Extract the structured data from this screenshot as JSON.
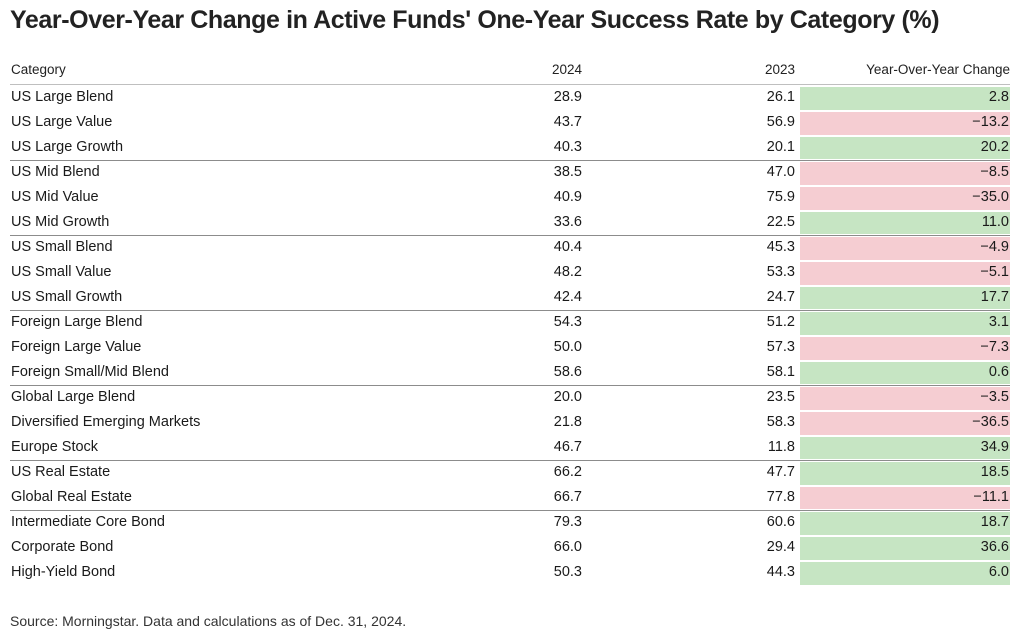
{
  "chart_data": {
    "type": "table",
    "title": "Year-Over-Year Change in Active Funds' One-Year Success Rate by Category (%)",
    "columns": [
      "Category",
      "2024",
      "2023",
      "Year-Over-Year Change"
    ],
    "colors": {
      "positive_fill": "#c6e5c3",
      "negative_fill": "#f5cdd2"
    },
    "rows": [
      {
        "category": "US Large Blend",
        "y2024": "28.9",
        "y2023": "26.1",
        "yoy": "2.8",
        "sign": "positive",
        "group_end": false
      },
      {
        "category": "US Large Value",
        "y2024": "43.7",
        "y2023": "56.9",
        "yoy": "−13.2",
        "sign": "negative",
        "group_end": false
      },
      {
        "category": "US Large Growth",
        "y2024": "40.3",
        "y2023": "20.1",
        "yoy": "20.2",
        "sign": "positive",
        "group_end": true
      },
      {
        "category": "US Mid Blend",
        "y2024": "38.5",
        "y2023": "47.0",
        "yoy": "−8.5",
        "sign": "negative",
        "group_end": false
      },
      {
        "category": "US Mid Value",
        "y2024": "40.9",
        "y2023": "75.9",
        "yoy": "−35.0",
        "sign": "negative",
        "group_end": false
      },
      {
        "category": "US Mid Growth",
        "y2024": "33.6",
        "y2023": "22.5",
        "yoy": "11.0",
        "sign": "positive",
        "group_end": true
      },
      {
        "category": "US Small Blend",
        "y2024": "40.4",
        "y2023": "45.3",
        "yoy": "−4.9",
        "sign": "negative",
        "group_end": false
      },
      {
        "category": "US Small Value",
        "y2024": "48.2",
        "y2023": "53.3",
        "yoy": "−5.1",
        "sign": "negative",
        "group_end": false
      },
      {
        "category": "US Small Growth",
        "y2024": "42.4",
        "y2023": "24.7",
        "yoy": "17.7",
        "sign": "positive",
        "group_end": true
      },
      {
        "category": "Foreign Large Blend",
        "y2024": "54.3",
        "y2023": "51.2",
        "yoy": "3.1",
        "sign": "positive",
        "group_end": false
      },
      {
        "category": "Foreign Large Value",
        "y2024": "50.0",
        "y2023": "57.3",
        "yoy": "−7.3",
        "sign": "negative",
        "group_end": false
      },
      {
        "category": "Foreign Small/Mid Blend",
        "y2024": "58.6",
        "y2023": "58.1",
        "yoy": "0.6",
        "sign": "positive",
        "group_end": true
      },
      {
        "category": "Global Large Blend",
        "y2024": "20.0",
        "y2023": "23.5",
        "yoy": "−3.5",
        "sign": "negative",
        "group_end": false
      },
      {
        "category": "Diversified Emerging Markets",
        "y2024": "21.8",
        "y2023": "58.3",
        "yoy": "−36.5",
        "sign": "negative",
        "group_end": false
      },
      {
        "category": "Europe Stock",
        "y2024": "46.7",
        "y2023": "11.8",
        "yoy": "34.9",
        "sign": "positive",
        "group_end": true
      },
      {
        "category": "US Real Estate",
        "y2024": "66.2",
        "y2023": "47.7",
        "yoy": "18.5",
        "sign": "positive",
        "group_end": false
      },
      {
        "category": "Global Real Estate",
        "y2024": "66.7",
        "y2023": "77.8",
        "yoy": "−11.1",
        "sign": "negative",
        "group_end": true
      },
      {
        "category": "Intermediate Core Bond",
        "y2024": "79.3",
        "y2023": "60.6",
        "yoy": "18.7",
        "sign": "positive",
        "group_end": false
      },
      {
        "category": "Corporate Bond",
        "y2024": "66.0",
        "y2023": "29.4",
        "yoy": "36.6",
        "sign": "positive",
        "group_end": false
      },
      {
        "category": "High-Yield Bond",
        "y2024": "50.3",
        "y2023": "44.3",
        "yoy": "6.0",
        "sign": "positive",
        "group_end": false
      }
    ],
    "source": "Source: Morningstar. Data and calculations as of Dec. 31, 2024."
  }
}
